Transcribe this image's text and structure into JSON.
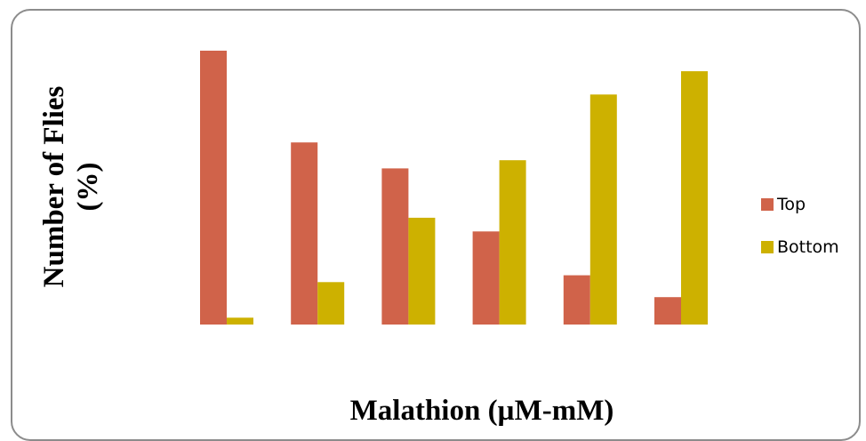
{
  "chart_data": {
    "type": "bar",
    "title": "",
    "xlabel": "Malathion (µM-mM)",
    "ylabel_lines": [
      "Number of Flies",
      "(%)"
    ],
    "categories": [
      "",
      "",
      "",
      "",
      "",
      ""
    ],
    "ylim": [
      0,
      100
    ],
    "grid": false,
    "legend_position": "right",
    "series": [
      {
        "name": "Top",
        "color": "#D0634A",
        "values": [
          100,
          66.5,
          57,
          34,
          18,
          10
        ]
      },
      {
        "name": "Bottom",
        "color": "#CDB100",
        "values": [
          2.5,
          15.5,
          39,
          60,
          84,
          92.5
        ]
      }
    ]
  }
}
